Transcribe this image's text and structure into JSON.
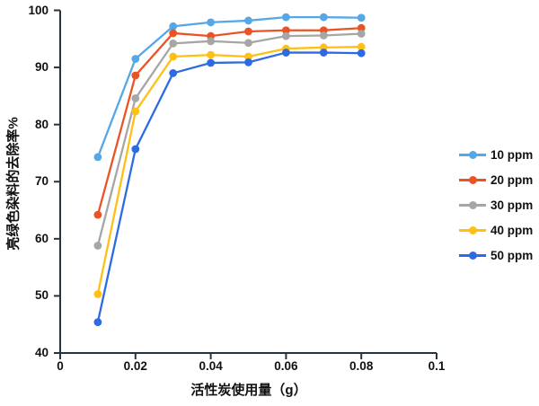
{
  "chart_data": {
    "type": "line",
    "xlabel": "活性炭使用量（g）",
    "ylabel": "亮绿色染料的去除率%",
    "x": [
      0.01,
      0.02,
      0.03,
      0.04,
      0.05,
      0.06,
      0.07,
      0.08
    ],
    "xlim": [
      0,
      0.1
    ],
    "ylim": [
      40,
      100
    ],
    "grid": false,
    "legend_position": "right",
    "axis_color": "#243540",
    "x_tick_values": [
      0,
      0.02,
      0.04,
      0.06,
      0.08,
      0.1
    ],
    "x_tick_labels": [
      "0",
      "0.02",
      "0.04",
      "0.06",
      "0.08",
      "0.1"
    ],
    "y_tick_values": [
      100,
      90,
      80,
      70,
      60,
      50,
      40
    ],
    "y_tick_labels": [
      "100",
      "90",
      "80",
      "70",
      "60",
      "50",
      "40"
    ],
    "series": [
      {
        "name": "10 ppm",
        "color": "#56A7E6",
        "values": [
          74.3,
          91.5,
          97.2,
          97.9,
          98.2,
          98.8,
          98.8,
          98.7
        ]
      },
      {
        "name": "20 ppm",
        "color": "#EB5324",
        "values": [
          64.2,
          88.6,
          96.0,
          95.5,
          96.3,
          96.5,
          96.5,
          96.9
        ]
      },
      {
        "name": "30 ppm",
        "color": "#A6A6A6",
        "values": [
          58.8,
          84.6,
          94.2,
          94.6,
          94.3,
          95.5,
          95.6,
          95.9
        ]
      },
      {
        "name": "40 ppm",
        "color": "#FFC013",
        "values": [
          50.3,
          82.3,
          91.9,
          92.2,
          91.9,
          93.3,
          93.5,
          93.6
        ]
      },
      {
        "name": "50 ppm",
        "color": "#2E6BE2",
        "values": [
          45.4,
          75.7,
          89.0,
          90.8,
          90.9,
          92.6,
          92.6,
          92.5
        ]
      }
    ]
  }
}
